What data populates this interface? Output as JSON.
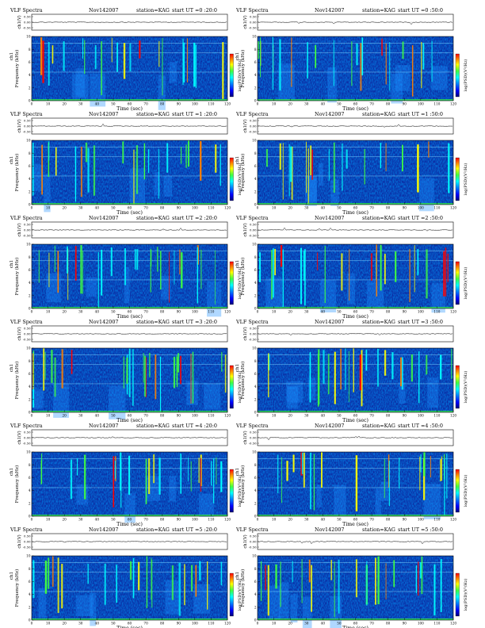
{
  "common": {
    "title": "VLF Spectra",
    "date": "Nov142007",
    "station": "station=KAG",
    "ts_ylabel": "ch1(V)",
    "ts_ticks": [
      "0.50",
      "0.00",
      "-0.50"
    ],
    "spec_ylabel_top": "ch1",
    "spec_ylabel": "Frequency (kHz)",
    "cbar_label": "log(PSD)(V²/Hz)",
    "xlabel": "Time (sec)",
    "colors": {
      "background": "#0b2fa6",
      "scale": [
        "#00007a",
        "#0000ff",
        "#0080ff",
        "#00ffff",
        "#40ff40",
        "#ffff00",
        "#ff8000",
        "#ff0000"
      ]
    }
  },
  "chart_data": [
    {
      "type": "heatmap",
      "start_ut": "start UT =0 :20:0",
      "xlim": [
        0,
        120
      ],
      "ylim": [
        0,
        10
      ],
      "xticks": [
        "0",
        "10",
        "20",
        "30",
        "40",
        "50",
        "60",
        "70",
        "80",
        "90",
        "100",
        "110",
        "120"
      ],
      "yticks": [
        "0",
        "2",
        "4",
        "6",
        "8",
        "10"
      ]
    },
    {
      "type": "heatmap",
      "start_ut": "start UT =0 :50:0",
      "xlim": [
        0,
        120
      ],
      "ylim": [
        0,
        10
      ],
      "xticks": [
        "0",
        "10",
        "20",
        "30",
        "40",
        "50",
        "60",
        "70",
        "80",
        "90",
        "100",
        "110",
        "120"
      ],
      "yticks": [
        "0",
        "2",
        "4",
        "6",
        "8",
        "10"
      ]
    },
    {
      "type": "heatmap",
      "start_ut": "start UT =1 :20:0",
      "xlim": [
        0,
        120
      ],
      "ylim": [
        0,
        10
      ],
      "xticks": [
        "0",
        "10",
        "20",
        "30",
        "40",
        "50",
        "60",
        "70",
        "80",
        "90",
        "100",
        "110",
        "120"
      ],
      "yticks": [
        "0",
        "2",
        "4",
        "6",
        "8",
        "10"
      ]
    },
    {
      "type": "heatmap",
      "start_ut": "start UT =1 :50:0",
      "xlim": [
        0,
        120
      ],
      "ylim": [
        0,
        10
      ],
      "xticks": [
        "0",
        "10",
        "20",
        "30",
        "40",
        "50",
        "60",
        "70",
        "80",
        "90",
        "100",
        "110",
        "120"
      ],
      "yticks": [
        "0",
        "2",
        "4",
        "6",
        "8",
        "10"
      ]
    },
    {
      "type": "heatmap",
      "start_ut": "start UT =2 :20:0",
      "xlim": [
        0,
        120
      ],
      "ylim": [
        0,
        10
      ],
      "xticks": [
        "0",
        "10",
        "20",
        "30",
        "40",
        "50",
        "60",
        "70",
        "80",
        "90",
        "100",
        "110",
        "120"
      ],
      "yticks": [
        "0",
        "2",
        "4",
        "6",
        "8",
        "10"
      ]
    },
    {
      "type": "heatmap",
      "start_ut": "start UT =2 :50:0",
      "xlim": [
        0,
        120
      ],
      "ylim": [
        0,
        10
      ],
      "xticks": [
        "0",
        "10",
        "20",
        "30",
        "40",
        "50",
        "60",
        "70",
        "80",
        "90",
        "100",
        "110",
        "120"
      ],
      "yticks": [
        "0",
        "2",
        "4",
        "6",
        "8",
        "10"
      ]
    },
    {
      "type": "heatmap",
      "start_ut": "start UT =3 :20:0",
      "xlim": [
        0,
        120
      ],
      "ylim": [
        0,
        10
      ],
      "xticks": [
        "0",
        "10",
        "20",
        "30",
        "40",
        "50",
        "60",
        "70",
        "80",
        "90",
        "100",
        "110",
        "120"
      ],
      "yticks": [
        "0",
        "2",
        "4",
        "6",
        "8",
        "10"
      ]
    },
    {
      "type": "heatmap",
      "start_ut": "start UT =3 :50:0",
      "xlim": [
        0,
        120
      ],
      "ylim": [
        0,
        10
      ],
      "xticks": [
        "0",
        "10",
        "20",
        "30",
        "40",
        "50",
        "60",
        "70",
        "80",
        "90",
        "100",
        "110",
        "120"
      ],
      "yticks": [
        "0",
        "2",
        "4",
        "6",
        "8",
        "10"
      ]
    },
    {
      "type": "heatmap",
      "start_ut": "start UT =4 :20:0",
      "xlim": [
        0,
        120
      ],
      "ylim": [
        0,
        10
      ],
      "xticks": [
        "0",
        "10",
        "20",
        "30",
        "40",
        "50",
        "60",
        "70",
        "80",
        "90",
        "100",
        "110",
        "120"
      ],
      "yticks": [
        "0",
        "2",
        "4",
        "6",
        "8",
        "10"
      ]
    },
    {
      "type": "heatmap",
      "start_ut": "start UT =4 :50:0",
      "xlim": [
        0,
        120
      ],
      "ylim": [
        0,
        10
      ],
      "xticks": [
        "0",
        "10",
        "20",
        "30",
        "40",
        "50",
        "60",
        "70",
        "80",
        "90",
        "100",
        "110",
        "120"
      ],
      "yticks": [
        "0",
        "2",
        "4",
        "6",
        "8",
        "10"
      ]
    },
    {
      "type": "heatmap",
      "start_ut": "start UT =5 :20:0",
      "xlim": [
        0,
        120
      ],
      "ylim": [
        0,
        10
      ],
      "xticks": [
        "0",
        "10",
        "20",
        "30",
        "40",
        "50",
        "60",
        "70",
        "80",
        "90",
        "100",
        "110",
        "120"
      ],
      "yticks": [
        "0",
        "2",
        "4",
        "6",
        "8",
        "10"
      ]
    },
    {
      "type": "heatmap",
      "start_ut": "start UT =5 :50:0",
      "xlim": [
        0,
        120
      ],
      "ylim": [
        0,
        10
      ],
      "xticks": [
        "0",
        "10",
        "20",
        "30",
        "40",
        "50",
        "60",
        "70",
        "80",
        "90",
        "100",
        "110",
        "120"
      ],
      "yticks": [
        "0",
        "2",
        "4",
        "6",
        "8",
        "10"
      ]
    }
  ]
}
